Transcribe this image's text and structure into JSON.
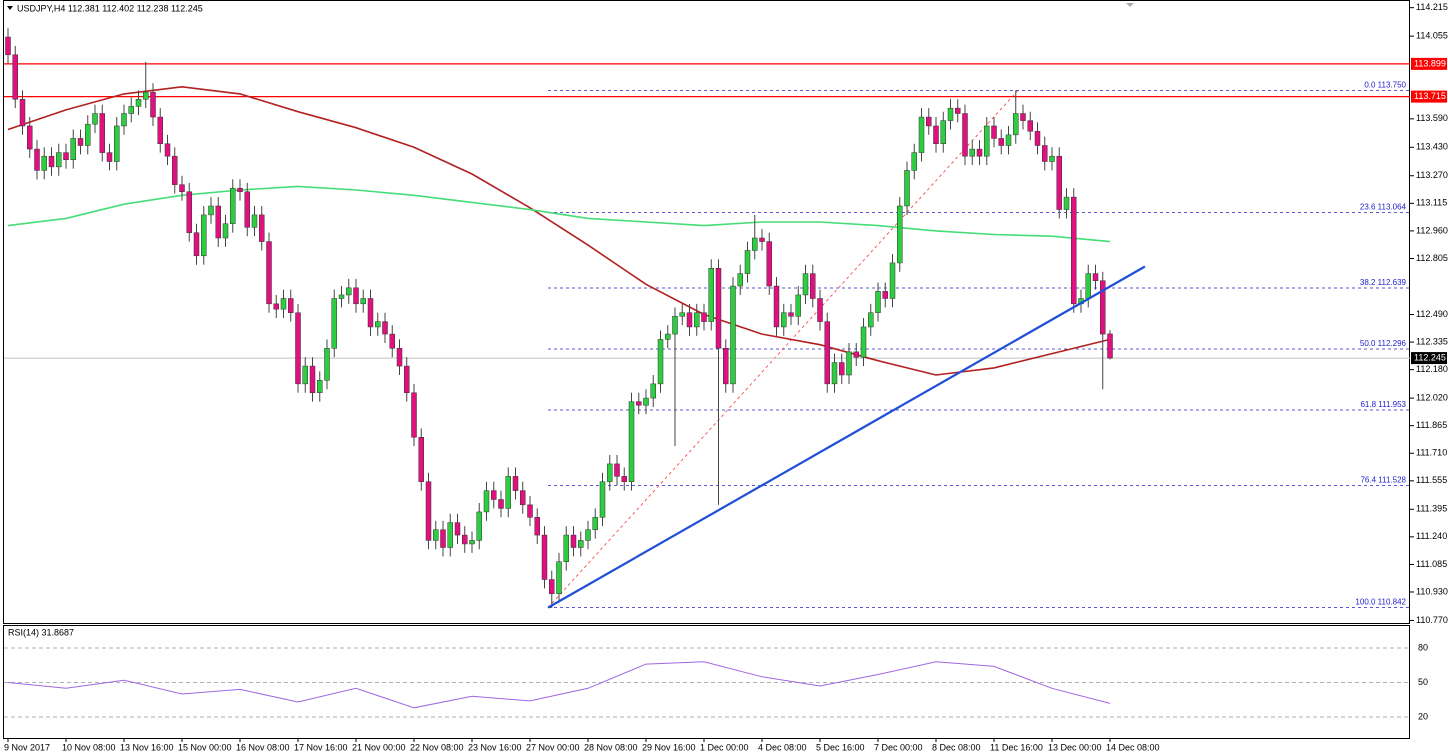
{
  "chart_data": {
    "type": "candlestick",
    "header": "USDJPY,H4  112.381 112.402 112.238 112.245",
    "bull_color": "#2ecc40",
    "bear_color": "#e0107f",
    "ylim": [
      110.75,
      114.23
    ],
    "yticks": [
      {
        "value": 114.215,
        "label": "114.215"
      },
      {
        "value": 114.055,
        "label": "114.055"
      },
      {
        "value": 113.59,
        "label": "113.590"
      },
      {
        "value": 113.43,
        "label": "113.430"
      },
      {
        "value": 113.27,
        "label": "113.270"
      },
      {
        "value": 113.115,
        "label": "113.115"
      },
      {
        "value": 112.96,
        "label": "112.960"
      },
      {
        "value": 112.805,
        "label": "112.805"
      },
      {
        "value": 112.49,
        "label": "112.490"
      },
      {
        "value": 112.335,
        "label": "112.335"
      },
      {
        "value": 112.18,
        "label": "112.180"
      },
      {
        "value": 112.02,
        "label": "112.020"
      },
      {
        "value": 111.865,
        "label": "111.865"
      },
      {
        "value": 111.71,
        "label": "111.710"
      },
      {
        "value": 111.555,
        "label": "111.555"
      },
      {
        "value": 111.395,
        "label": "111.395"
      },
      {
        "value": 111.24,
        "label": "111.240"
      },
      {
        "value": 111.085,
        "label": "111.085"
      },
      {
        "value": 110.93,
        "label": "110.930"
      },
      {
        "value": 110.77,
        "label": "110.770"
      }
    ],
    "resistance_levels": [
      113.899,
      113.715
    ],
    "resistance_color": "#ff0000",
    "last_price": 112.245,
    "categories": [
      "9 Nov 2017",
      null,
      null,
      null,
      null,
      null,
      null,
      null,
      "10 Nov 08:00",
      null,
      null,
      null,
      null,
      null,
      null,
      null,
      "13 Nov 16:00",
      null,
      null,
      null,
      null,
      null,
      null,
      null,
      "15 Nov 00:00",
      null,
      null,
      null,
      null,
      null,
      null,
      null,
      "16 Nov 08:00",
      null,
      null,
      null,
      null,
      null,
      null,
      null,
      "17 Nov 16:00",
      null,
      null,
      null,
      null,
      null,
      null,
      null,
      "21 Nov 00:00",
      null,
      null,
      null,
      null,
      null,
      null,
      null,
      "22 Nov 08:00",
      null,
      null,
      null,
      null,
      null,
      null,
      null,
      "23 Nov 16:00",
      null,
      null,
      null,
      null,
      null,
      null,
      null,
      "27 Nov 00:00",
      null,
      null,
      null,
      null,
      null,
      null,
      null,
      "28 Nov 08:00",
      null,
      null,
      null,
      null,
      null,
      null,
      null,
      "29 Nov 16:00",
      null,
      null,
      null,
      null,
      null,
      null,
      null,
      "1 Dec 00:00",
      null,
      null,
      null,
      null,
      null,
      null,
      null,
      "4 Dec 08:00",
      null,
      null,
      null,
      null,
      null,
      null,
      null,
      "5 Dec 16:00",
      null,
      null,
      null,
      null,
      null,
      null,
      null,
      "7 Dec 00:00",
      null,
      null,
      null,
      null,
      null,
      null,
      null,
      "8 Dec 08:00",
      null,
      null,
      null,
      null,
      null,
      null,
      null,
      "11 Dec 16:00",
      null,
      null,
      null,
      null,
      null,
      null,
      null,
      "13 Dec 00:00",
      null,
      null,
      null,
      null,
      null,
      null,
      null,
      "14 Dec 08:00"
    ],
    "candles": [
      [
        114.05,
        114.1,
        113.9,
        113.95
      ],
      [
        113.95,
        114.0,
        113.65,
        113.7
      ],
      [
        113.7,
        113.75,
        113.5,
        113.55
      ],
      [
        113.55,
        113.6,
        113.37,
        113.42
      ],
      [
        113.42,
        113.47,
        113.25,
        113.3
      ],
      [
        113.3,
        113.43,
        113.25,
        113.38
      ],
      [
        113.38,
        113.43,
        113.27,
        113.32
      ],
      [
        113.32,
        113.45,
        113.27,
        113.4
      ],
      [
        113.4,
        113.45,
        113.31,
        113.36
      ],
      [
        113.36,
        113.53,
        113.31,
        113.48
      ],
      [
        113.48,
        113.53,
        113.39,
        113.44
      ],
      [
        113.44,
        113.61,
        113.39,
        113.56
      ],
      [
        113.56,
        113.67,
        113.51,
        113.62
      ],
      [
        113.62,
        113.67,
        113.35,
        113.4
      ],
      [
        113.4,
        113.45,
        113.3,
        113.35
      ],
      [
        113.35,
        113.6,
        113.3,
        113.55
      ],
      [
        113.55,
        113.67,
        113.5,
        113.62
      ],
      [
        113.62,
        113.71,
        113.57,
        113.66
      ],
      [
        113.66,
        113.75,
        113.61,
        113.7
      ],
      [
        113.7,
        113.91,
        113.65,
        113.74
      ],
      [
        113.74,
        113.79,
        113.55,
        113.6
      ],
      [
        113.6,
        113.65,
        113.4,
        113.45
      ],
      [
        113.45,
        113.5,
        113.33,
        113.38
      ],
      [
        113.38,
        113.43,
        113.17,
        113.22
      ],
      [
        113.22,
        113.27,
        113.13,
        113.18
      ],
      [
        113.18,
        113.23,
        112.9,
        112.95
      ],
      [
        112.95,
        113.0,
        112.77,
        112.82
      ],
      [
        112.82,
        113.1,
        112.77,
        113.05
      ],
      [
        113.05,
        113.15,
        113.0,
        113.1
      ],
      [
        113.1,
        113.15,
        112.87,
        112.92
      ],
      [
        112.92,
        113.05,
        112.87,
        113.0
      ],
      [
        113.0,
        113.25,
        112.95,
        113.2
      ],
      [
        113.2,
        113.25,
        113.13,
        113.18
      ],
      [
        113.18,
        113.23,
        112.93,
        112.98
      ],
      [
        112.98,
        113.1,
        112.93,
        113.05
      ],
      [
        113.05,
        113.1,
        112.85,
        112.9
      ],
      [
        112.9,
        112.95,
        112.5,
        112.55
      ],
      [
        112.55,
        112.6,
        112.47,
        112.52
      ],
      [
        112.52,
        112.63,
        112.47,
        112.58
      ],
      [
        112.58,
        112.63,
        112.45,
        112.5
      ],
      [
        112.5,
        112.55,
        112.05,
        112.1
      ],
      [
        112.1,
        112.25,
        112.05,
        112.2
      ],
      [
        112.2,
        112.25,
        112.0,
        112.05
      ],
      [
        112.05,
        112.17,
        112.0,
        112.12
      ],
      [
        112.12,
        112.35,
        112.07,
        112.3
      ],
      [
        112.3,
        112.63,
        112.25,
        112.58
      ],
      [
        112.58,
        112.65,
        112.53,
        112.6
      ],
      [
        112.6,
        112.69,
        112.55,
        112.64
      ],
      [
        112.64,
        112.69,
        112.5,
        112.55
      ],
      [
        112.55,
        112.63,
        112.5,
        112.58
      ],
      [
        112.58,
        112.63,
        112.37,
        112.42
      ],
      [
        112.42,
        112.5,
        112.37,
        112.45
      ],
      [
        112.45,
        112.5,
        112.33,
        112.38
      ],
      [
        112.38,
        112.43,
        112.25,
        112.3
      ],
      [
        112.3,
        112.35,
        112.15,
        112.2
      ],
      [
        112.2,
        112.25,
        112.0,
        112.05
      ],
      [
        112.05,
        112.1,
        111.75,
        111.8
      ],
      [
        111.8,
        111.85,
        111.5,
        111.55
      ],
      [
        111.55,
        111.6,
        111.17,
        111.22
      ],
      [
        111.22,
        111.33,
        111.17,
        111.28
      ],
      [
        111.28,
        111.33,
        111.13,
        111.18
      ],
      [
        111.18,
        111.37,
        111.13,
        111.32
      ],
      [
        111.32,
        111.37,
        111.2,
        111.25
      ],
      [
        111.25,
        111.3,
        111.15,
        111.2
      ],
      [
        111.2,
        111.27,
        111.15,
        111.22
      ],
      [
        111.22,
        111.43,
        111.17,
        111.38
      ],
      [
        111.38,
        111.55,
        111.33,
        111.5
      ],
      [
        111.5,
        111.55,
        111.4,
        111.45
      ],
      [
        111.45,
        111.5,
        111.35,
        111.4
      ],
      [
        111.4,
        111.63,
        111.35,
        111.58
      ],
      [
        111.58,
        111.63,
        111.45,
        111.5
      ],
      [
        111.5,
        111.55,
        111.37,
        111.42
      ],
      [
        111.42,
        111.47,
        111.3,
        111.35
      ],
      [
        111.35,
        111.4,
        111.2,
        111.25
      ],
      [
        111.25,
        111.3,
        110.95,
        111.0
      ],
      [
        111.0,
        111.05,
        110.84,
        110.92
      ],
      [
        110.92,
        111.15,
        110.87,
        111.1
      ],
      [
        111.1,
        111.3,
        111.05,
        111.25
      ],
      [
        111.25,
        111.3,
        111.13,
        111.18
      ],
      [
        111.18,
        111.27,
        111.13,
        111.22
      ],
      [
        111.22,
        111.33,
        111.17,
        111.28
      ],
      [
        111.28,
        111.4,
        111.23,
        111.35
      ],
      [
        111.35,
        111.6,
        111.3,
        111.55
      ],
      [
        111.55,
        111.7,
        111.5,
        111.65
      ],
      [
        111.65,
        111.7,
        111.53,
        111.58
      ],
      [
        111.58,
        111.63,
        111.5,
        111.55
      ],
      [
        111.55,
        112.05,
        111.5,
        112.0
      ],
      [
        112.0,
        112.05,
        111.93,
        111.98
      ],
      [
        111.98,
        112.07,
        111.93,
        112.02
      ],
      [
        112.02,
        112.15,
        111.97,
        112.1
      ],
      [
        112.1,
        112.4,
        112.05,
        112.35
      ],
      [
        112.35,
        112.43,
        112.3,
        112.38
      ],
      [
        112.38,
        112.53,
        111.75,
        112.48
      ],
      [
        112.48,
        112.55,
        112.43,
        112.5
      ],
      [
        112.5,
        112.55,
        112.37,
        112.42
      ],
      [
        112.42,
        112.55,
        112.37,
        112.5
      ],
      [
        112.5,
        112.55,
        112.4,
        112.45
      ],
      [
        112.45,
        112.8,
        112.4,
        112.75
      ],
      [
        112.75,
        112.8,
        111.42,
        112.3
      ],
      [
        112.3,
        112.35,
        112.05,
        112.1
      ],
      [
        112.1,
        112.7,
        112.05,
        112.65
      ],
      [
        112.65,
        112.77,
        112.6,
        112.72
      ],
      [
        112.72,
        112.9,
        112.67,
        112.85
      ],
      [
        112.85,
        113.05,
        112.8,
        112.92
      ],
      [
        112.92,
        112.97,
        112.85,
        112.9
      ],
      [
        112.9,
        112.95,
        112.6,
        112.65
      ],
      [
        112.65,
        112.7,
        112.37,
        112.42
      ],
      [
        112.42,
        112.55,
        112.37,
        112.5
      ],
      [
        112.5,
        112.55,
        112.43,
        112.48
      ],
      [
        112.48,
        112.65,
        112.43,
        112.6
      ],
      [
        112.6,
        112.77,
        112.55,
        112.72
      ],
      [
        112.72,
        112.77,
        112.53,
        112.58
      ],
      [
        112.58,
        112.63,
        112.4,
        112.45
      ],
      [
        112.45,
        112.5,
        112.05,
        112.1
      ],
      [
        112.1,
        112.27,
        112.05,
        112.22
      ],
      [
        112.22,
        112.27,
        112.1,
        112.15
      ],
      [
        112.15,
        112.33,
        112.1,
        112.28
      ],
      [
        112.28,
        112.33,
        112.2,
        112.25
      ],
      [
        112.25,
        112.47,
        112.2,
        112.42
      ],
      [
        112.42,
        112.55,
        112.37,
        112.5
      ],
      [
        112.5,
        112.67,
        112.45,
        112.62
      ],
      [
        112.62,
        112.67,
        112.53,
        112.58
      ],
      [
        112.58,
        112.83,
        112.53,
        112.78
      ],
      [
        112.78,
        113.15,
        112.73,
        113.1
      ],
      [
        113.1,
        113.35,
        113.05,
        113.3
      ],
      [
        113.3,
        113.45,
        113.25,
        113.4
      ],
      [
        113.4,
        113.65,
        113.35,
        113.6
      ],
      [
        113.6,
        113.65,
        113.5,
        113.55
      ],
      [
        113.55,
        113.6,
        113.4,
        113.45
      ],
      [
        113.45,
        113.63,
        113.4,
        113.58
      ],
      [
        113.58,
        113.7,
        113.53,
        113.65
      ],
      [
        113.65,
        113.7,
        113.57,
        113.62
      ],
      [
        113.62,
        113.67,
        113.33,
        113.38
      ],
      [
        113.38,
        113.47,
        113.33,
        113.42
      ],
      [
        113.42,
        113.47,
        113.33,
        113.38
      ],
      [
        113.38,
        113.6,
        113.33,
        113.55
      ],
      [
        113.55,
        113.6,
        113.43,
        113.48
      ],
      [
        113.48,
        113.53,
        113.39,
        113.44
      ],
      [
        113.44,
        113.55,
        113.39,
        113.5
      ],
      [
        113.5,
        113.75,
        113.45,
        113.62
      ],
      [
        113.62,
        113.67,
        113.53,
        113.58
      ],
      [
        113.58,
        113.63,
        113.47,
        113.52
      ],
      [
        113.52,
        113.57,
        113.39,
        113.44
      ],
      [
        113.44,
        113.49,
        113.3,
        113.35
      ],
      [
        113.35,
        113.43,
        113.3,
        113.38
      ],
      [
        113.38,
        113.43,
        113.03,
        113.08
      ],
      [
        113.08,
        113.2,
        113.03,
        113.15
      ],
      [
        113.15,
        113.2,
        112.5,
        112.55
      ],
      [
        112.55,
        112.63,
        112.5,
        112.58
      ],
      [
        112.58,
        112.77,
        112.53,
        112.72
      ],
      [
        112.72,
        112.77,
        112.63,
        112.68
      ],
      [
        112.68,
        112.73,
        112.07,
        112.38
      ],
      [
        112.381,
        112.402,
        112.238,
        112.245
      ]
    ],
    "ma": [
      {
        "color": "#b22020",
        "x": [
          "9 Nov 2017",
          "10 Nov 08:00",
          "13 Nov 16:00",
          "15 Nov 00:00",
          "16 Nov 08:00",
          "17 Nov 16:00",
          "21 Nov 00:00",
          "22 Nov 08:00",
          "23 Nov 16:00",
          "27 Nov 00:00",
          "28 Nov 08:00",
          "29 Nov 16:00",
          "1 Dec 00:00",
          "4 Dec 08:00",
          "5 Dec 16:00",
          "7 Dec 00:00",
          "8 Dec 08:00",
          "11 Dec 16:00",
          "13 Dec 00:00",
          "14 Dec 08:00"
        ],
        "values": [
          113.53,
          113.64,
          113.73,
          113.77,
          113.73,
          113.63,
          113.54,
          113.43,
          113.28,
          113.09,
          112.88,
          112.66,
          112.49,
          112.38,
          112.32,
          112.23,
          112.15,
          112.19,
          112.27,
          112.35
        ]
      },
      {
        "color": "#44dd77",
        "x": [
          "9 Nov 2017",
          "10 Nov 08:00",
          "13 Nov 16:00",
          "15 Nov 00:00",
          "16 Nov 08:00",
          "17 Nov 16:00",
          "21 Nov 00:00",
          "22 Nov 08:00",
          "23 Nov 16:00",
          "27 Nov 00:00",
          "28 Nov 08:00",
          "29 Nov 16:00",
          "1 Dec 00:00",
          "4 Dec 08:00",
          "5 Dec 16:00",
          "7 Dec 00:00",
          "8 Dec 08:00",
          "11 Dec 16:00",
          "13 Dec 00:00",
          "14 Dec 08:00"
        ],
        "values": [
          112.99,
          113.03,
          113.11,
          113.16,
          113.19,
          113.21,
          113.19,
          113.16,
          113.12,
          113.08,
          113.03,
          113.01,
          112.99,
          113.01,
          113.01,
          112.99,
          112.96,
          112.94,
          112.93,
          112.9
        ]
      }
    ],
    "fib": {
      "color": "#2222cc",
      "levels": [
        {
          "value": 113.75,
          "label": "0.0 113.750"
        },
        {
          "value": 113.064,
          "label": "23.6 113.064"
        },
        {
          "value": 112.639,
          "label": "38.2 112.639"
        },
        {
          "value": 112.296,
          "label": "50.0 112.296"
        },
        {
          "value": 111.953,
          "label": "61.8 111.953"
        },
        {
          "value": 111.528,
          "label": "76.4 111.528"
        },
        {
          "value": 110.842,
          "label": "100.0 110.842"
        }
      ]
    },
    "trendline": {
      "color": "#1f4fd6",
      "values": [
        110.842,
        112.76
      ]
    },
    "rsi": {
      "label": "RSI(14) 31.8687",
      "color": "#a066e0",
      "ylim": [
        0,
        100
      ],
      "yticks": [
        80,
        50,
        20
      ],
      "x": [
        "9 Nov 2017",
        "10 Nov 08:00",
        "13 Nov 16:00",
        "15 Nov 00:00",
        "16 Nov 08:00",
        "17 Nov 16:00",
        "21 Nov 00:00",
        "22 Nov 08:00",
        "23 Nov 16:00",
        "27 Nov 00:00",
        "28 Nov 08:00",
        "29 Nov 16:00",
        "1 Dec 00:00",
        "4 Dec 08:00",
        "5 Dec 16:00",
        "7 Dec 00:00",
        "8 Dec 08:00",
        "11 Dec 16:00",
        "13 Dec 00:00",
        "14 Dec 08:00"
      ],
      "values": [
        50,
        45,
        52,
        40,
        44,
        33,
        45,
        28,
        38,
        34,
        45,
        66,
        68,
        55,
        47,
        57,
        68,
        64,
        45,
        31.8687
      ]
    }
  }
}
